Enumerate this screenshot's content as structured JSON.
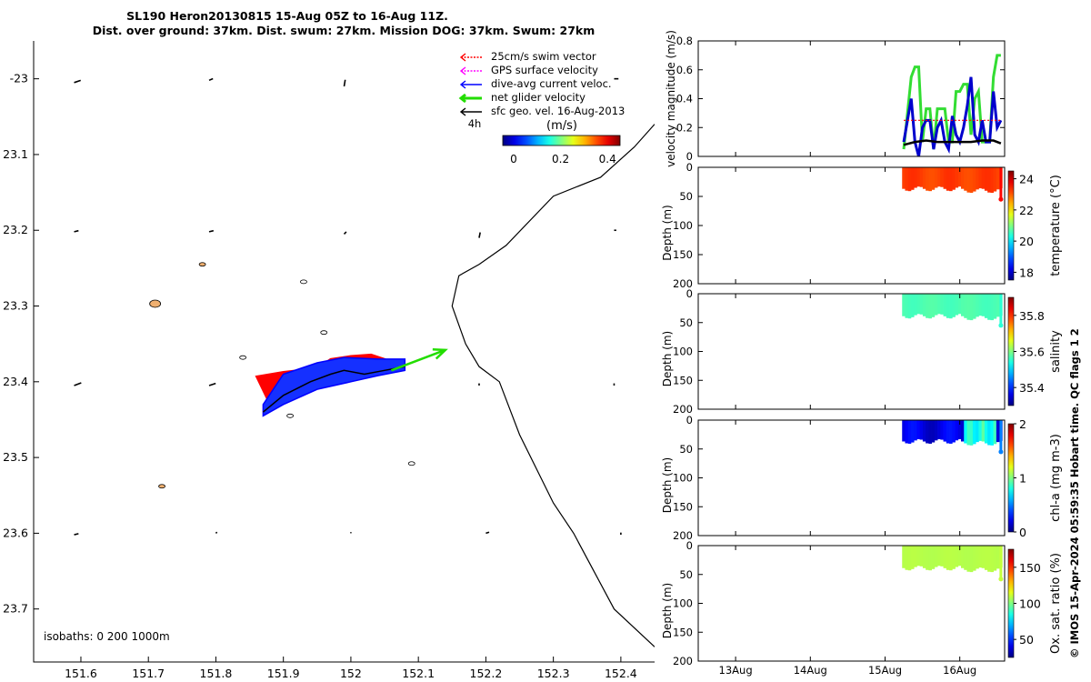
{
  "title_line1": "SL190 Heron20130815 15-Aug 05Z to 16-Aug 11Z.",
  "title_line2": "Dist. over ground: 37km. Dist. swum: 27km. Mission DOG: 37km. Swum: 27km",
  "footer_credit": "© IMOS 15-Apr-2024 05:59:35 Hobart time. QC flags 1  2",
  "chart_data": [
    {
      "type": "scatter",
      "name": "map",
      "xlim": [
        151.53,
        152.45
      ],
      "ylim": [
        23.77,
        22.95
      ],
      "y_reversed": true,
      "xticks": [
        151.6,
        151.7,
        151.8,
        151.9,
        152.0,
        152.1,
        152.2,
        152.3,
        152.4
      ],
      "xtick_labels": [
        "151.6",
        "151.7",
        "151.8",
        "151.9",
        "152",
        "152.1",
        "152.2",
        "152.3",
        "152.4"
      ],
      "yticks": [
        23.0,
        23.1,
        23.2,
        23.3,
        23.4,
        23.5,
        23.6,
        23.7
      ],
      "ytick_labels": [
        "-23",
        "23.1",
        "23.2",
        "23.3",
        "23.4",
        "23.5",
        "23.6",
        "23.7"
      ],
      "legend": {
        "placement": "top-right",
        "entries": [
          {
            "label": "25cm/s swim vector",
            "color": "#ff0000",
            "style": "dotted-arrow"
          },
          {
            "label": "GPS surface velocity",
            "color": "#ff00ff",
            "style": "dotted-arrow"
          },
          {
            "label": "dive-avg current veloc.",
            "color": "#0000ff",
            "style": "arrow"
          },
          {
            "label": "net glider velocity",
            "color": "#22dd00",
            "style": "thick-arrow"
          },
          {
            "label": "sfc geo. vel. 16-Aug-2013",
            "color": "#000000",
            "style": "arrow"
          }
        ]
      },
      "colorbar": {
        "label": "(m/s)",
        "ticks": [
          "0",
          "0.2",
          "0.4"
        ],
        "range": [
          0,
          0.5
        ]
      },
      "annotation_4h": "4h",
      "isobaths_label": "isobaths: 0   200  1000m",
      "coastline": [
        [
          152.45,
          23.06
        ],
        [
          152.42,
          23.09
        ],
        [
          152.37,
          23.13
        ],
        [
          152.3,
          23.155
        ],
        [
          152.23,
          23.22
        ],
        [
          152.19,
          23.245
        ],
        [
          152.16,
          23.26
        ],
        [
          152.15,
          23.3
        ],
        [
          152.17,
          23.35
        ],
        [
          152.19,
          23.38
        ],
        [
          152.22,
          23.4
        ],
        [
          152.25,
          23.47
        ],
        [
          152.3,
          23.56
        ],
        [
          152.33,
          23.6
        ],
        [
          152.36,
          23.65
        ],
        [
          152.39,
          23.7
        ],
        [
          152.45,
          23.75
        ]
      ],
      "islands": [
        [
          151.71,
          23.297
        ],
        [
          151.78,
          23.245
        ],
        [
          151.84,
          23.368
        ],
        [
          151.93,
          23.268
        ],
        [
          151.96,
          23.335
        ],
        [
          151.91,
          23.445
        ],
        [
          152.09,
          23.508
        ],
        [
          151.72,
          23.538
        ]
      ],
      "geo_vectors": [
        {
          "x": 151.59,
          "y": 23.005,
          "u": 0.012,
          "v": 0.004
        },
        {
          "x": 151.79,
          "y": 23.002,
          "u": 0.007,
          "v": 0.003
        },
        {
          "x": 151.99,
          "y": 23.01,
          "u": 0.002,
          "v": 0.012
        },
        {
          "x": 152.39,
          "y": 23.0,
          "u": 0.008,
          "v": 0.0
        },
        {
          "x": 151.59,
          "y": 23.202,
          "u": 0.008,
          "v": 0.002
        },
        {
          "x": 151.79,
          "y": 23.202,
          "u": 0.008,
          "v": 0.002
        },
        {
          "x": 151.99,
          "y": 23.205,
          "u": 0.004,
          "v": 0.004
        },
        {
          "x": 152.19,
          "y": 23.21,
          "u": 0.002,
          "v": 0.01
        },
        {
          "x": 152.39,
          "y": 23.2,
          "u": 0.004,
          "v": 0.0
        },
        {
          "x": 151.59,
          "y": 23.405,
          "u": 0.013,
          "v": 0.005
        },
        {
          "x": 151.79,
          "y": 23.405,
          "u": 0.012,
          "v": 0.004
        },
        {
          "x": 152.19,
          "y": 23.405,
          "u": 0.0,
          "v": 0.004
        },
        {
          "x": 152.39,
          "y": 23.405,
          "u": 0.0,
          "v": 0.004
        },
        {
          "x": 151.59,
          "y": 23.602,
          "u": 0.008,
          "v": 0.002
        },
        {
          "x": 151.8,
          "y": 23.6,
          "u": 0.002,
          "v": 0.002
        },
        {
          "x": 152.0,
          "y": 23.6,
          "u": 0.0,
          "v": 0.002
        },
        {
          "x": 152.2,
          "y": 23.6,
          "u": 0.006,
          "v": 0.002
        },
        {
          "x": 152.4,
          "y": 23.602,
          "u": 0.0,
          "v": 0.004
        }
      ],
      "glider_track": [
        [
          151.87,
          23.44
        ],
        [
          151.9,
          23.418
        ],
        [
          151.94,
          23.4
        ],
        [
          151.97,
          23.39
        ],
        [
          151.99,
          23.385
        ],
        [
          152.02,
          23.39
        ],
        [
          152.05,
          23.385
        ],
        [
          152.08,
          23.38
        ]
      ],
      "net_velocity_arrow": {
        "x0": 152.06,
        "y0": 23.385,
        "x1": 152.14,
        "y1": 23.358
      },
      "dive_avg_current_band": [
        [
          151.87,
          23.445
        ],
        [
          151.9,
          23.43
        ],
        [
          151.95,
          23.41
        ],
        [
          152.0,
          23.4
        ],
        [
          152.04,
          23.392
        ],
        [
          152.08,
          23.385
        ],
        [
          152.08,
          23.37
        ],
        [
          152.04,
          23.37
        ],
        [
          151.99,
          23.368
        ],
        [
          151.95,
          23.375
        ],
        [
          151.9,
          23.39
        ],
        [
          151.87,
          23.43
        ]
      ],
      "swim_vector_band": [
        [
          151.88,
          23.43
        ],
        [
          151.92,
          23.41
        ],
        [
          151.96,
          23.4
        ],
        [
          152.0,
          23.395
        ],
        [
          152.04,
          23.385
        ],
        [
          152.05,
          23.37
        ],
        [
          152.03,
          23.364
        ],
        [
          152.0,
          23.366
        ],
        [
          151.97,
          23.37
        ],
        [
          151.95,
          23.382
        ],
        [
          151.9,
          23.387
        ],
        [
          151.86,
          23.393
        ]
      ]
    },
    {
      "type": "line",
      "name": "velocity",
      "ylabel": "velocity magnitude (m/s)",
      "xlim": [
        12.5,
        16.6
      ],
      "ylim": [
        0,
        0.8
      ],
      "yticks": [
        "0",
        "0.2",
        "0.4",
        "0.6",
        "0.8"
      ],
      "series": [
        {
          "color": "#33dd33",
          "x": [
            15.25,
            15.35,
            15.4,
            15.45,
            15.5,
            15.55,
            15.6,
            15.65,
            15.7,
            15.75,
            15.8,
            15.85,
            15.9,
            15.95,
            16.0,
            16.05,
            16.1,
            16.15,
            16.2,
            16.25,
            16.3,
            16.35,
            16.4,
            16.45,
            16.5,
            16.55
          ],
          "values": [
            0.05,
            0.55,
            0.62,
            0.62,
            0.1,
            0.33,
            0.33,
            0.05,
            0.33,
            0.33,
            0.33,
            0.1,
            0.1,
            0.45,
            0.45,
            0.5,
            0.5,
            0.15,
            0.4,
            0.45,
            0.1,
            0.1,
            0.1,
            0.55,
            0.7,
            0.7
          ]
        },
        {
          "color": "#0000cc",
          "x": [
            15.25,
            15.3,
            15.35,
            15.4,
            15.45,
            15.5,
            15.55,
            15.6,
            15.65,
            15.7,
            15.75,
            15.8,
            15.85,
            15.9,
            15.95,
            16.0,
            16.05,
            16.1,
            16.15,
            16.2,
            16.25,
            16.3,
            16.35,
            16.4,
            16.45,
            16.5,
            16.55
          ],
          "values": [
            0.1,
            0.25,
            0.4,
            0.1,
            0.0,
            0.2,
            0.25,
            0.25,
            0.05,
            0.2,
            0.25,
            0.1,
            0.05,
            0.28,
            0.15,
            0.1,
            0.2,
            0.35,
            0.55,
            0.15,
            0.1,
            0.25,
            0.1,
            0.1,
            0.45,
            0.2,
            0.25
          ]
        },
        {
          "color": "#000000",
          "x": [
            15.25,
            15.4,
            15.55,
            15.7,
            15.85,
            16.0,
            16.15,
            16.3,
            16.45,
            16.55
          ],
          "values": [
            0.08,
            0.1,
            0.11,
            0.1,
            0.1,
            0.1,
            0.1,
            0.11,
            0.11,
            0.09
          ]
        },
        {
          "color": "#ff0000",
          "style": "dotted",
          "x": [
            15.25,
            16.55
          ],
          "values": [
            0.25,
            0.25
          ]
        }
      ]
    },
    {
      "type": "heatmap",
      "name": "temperature",
      "ylabel": "Depth (m)",
      "colorbar_label": "temperature (°C)",
      "ylim": [
        0,
        200
      ],
      "yticks": [
        "0",
        "50",
        "100",
        "150",
        "200"
      ],
      "cbar_ticks": [
        "18",
        "20",
        "22",
        "24"
      ],
      "cbar_range": [
        17.5,
        24.5
      ],
      "value_shown": 23.2,
      "value_deep": 23.6,
      "data_x": [
        15.25,
        16.55
      ],
      "data_depth_max": 40,
      "last_profile_depth": 55
    },
    {
      "type": "heatmap",
      "name": "salinity",
      "ylabel": "Depth (m)",
      "colorbar_label": "salinity",
      "ylim": [
        0,
        200
      ],
      "yticks": [
        "0",
        "50",
        "100",
        "150",
        "200"
      ],
      "cbar_ticks": [
        "35.4",
        "35.6",
        "35.8"
      ],
      "cbar_range": [
        35.3,
        35.9
      ],
      "value_shown": 35.57,
      "value_deep": 35.55,
      "data_x": [
        15.25,
        16.55
      ],
      "data_depth_max": 42,
      "last_profile_depth": 55
    },
    {
      "type": "heatmap",
      "name": "chl-a",
      "ylabel": "Depth (m)",
      "colorbar_label": "chl-a (mg m-3)",
      "ylim": [
        0,
        200
      ],
      "yticks": [
        "0",
        "50",
        "100",
        "150",
        "200"
      ],
      "cbar_ticks": [
        "0",
        "1",
        "2"
      ],
      "cbar_range": [
        0,
        2
      ],
      "value_shown": 0.2,
      "value_deep": 0.5,
      "patch_value": 0.95,
      "patch_x": [
        16.05,
        16.5
      ],
      "data_x": [
        15.25,
        16.55
      ],
      "data_depth_max": 40,
      "last_profile_depth": 55
    },
    {
      "type": "heatmap",
      "name": "oxygen",
      "ylabel": "Depth (m)",
      "colorbar_label": "Ox. sat. ratio (%)",
      "ylim": [
        0,
        200
      ],
      "yticks": [
        "0",
        "50",
        "100",
        "150",
        "200"
      ],
      "cbar_ticks": [
        "50",
        "100",
        "150"
      ],
      "cbar_range": [
        25,
        175
      ],
      "value_shown": 108,
      "value_deep": 110,
      "data_x": [
        15.25,
        16.55
      ],
      "data_depth_max": 42,
      "last_profile_depth": 58
    }
  ],
  "time_axis": {
    "xlim": [
      12.5,
      16.6
    ],
    "ticks": [
      13,
      14,
      15,
      16
    ],
    "tick_labels": [
      "13Aug",
      "14Aug",
      "15Aug",
      "16Aug"
    ]
  }
}
